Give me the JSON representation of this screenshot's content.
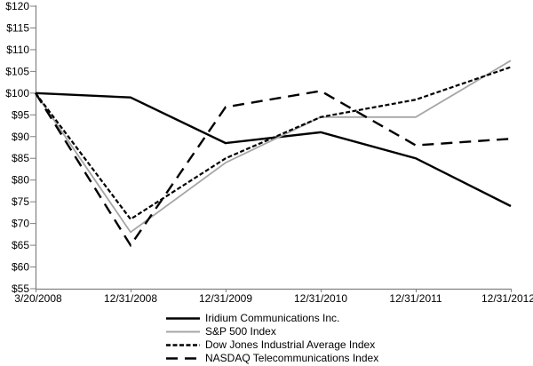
{
  "chart_data": {
    "type": "line",
    "title": "",
    "xlabel": "",
    "ylabel": "",
    "x_labels": [
      "3/20/2008",
      "12/31/2008",
      "12/31/2009",
      "12/31/2010",
      "12/31/2011",
      "12/31/2012"
    ],
    "y_tick_labels": [
      "$55",
      "$60",
      "$65",
      "$70",
      "$75",
      "$80",
      "$85",
      "$90",
      "$95",
      "$100",
      "$105",
      "$110",
      "$115",
      "$120"
    ],
    "y_axis": {
      "min": 55,
      "max": 120,
      "step": 5,
      "prefix": "$"
    },
    "ylim": [
      55,
      120
    ],
    "grid": false,
    "legend_position": "bottom-center",
    "series": [
      {
        "name": "Iridium Communications Inc.",
        "color": "#000000",
        "dash": "",
        "width": 2.4,
        "values": [
          100,
          99,
          88.5,
          91,
          85,
          74
        ]
      },
      {
        "name": "S&P 500 Index",
        "color": "#a6a6a6",
        "dash": "",
        "width": 1.8,
        "values": [
          100,
          68,
          84,
          94.5,
          94.5,
          107.5
        ]
      },
      {
        "name": "Dow Jones Industrial Average Index",
        "color": "#000000",
        "dash": "5 2.5",
        "width": 2.2,
        "values": [
          100,
          71,
          85,
          94.5,
          98.5,
          106
        ]
      },
      {
        "name": "NASDAQ Telecommunications Index",
        "color": "#000000",
        "dash": "13 8",
        "width": 2.4,
        "values": [
          100,
          65,
          96.8,
          100.5,
          88,
          89.5
        ]
      }
    ],
    "colors": {
      "axis": "#808080",
      "text": "#000000",
      "background": "#ffffff"
    }
  }
}
